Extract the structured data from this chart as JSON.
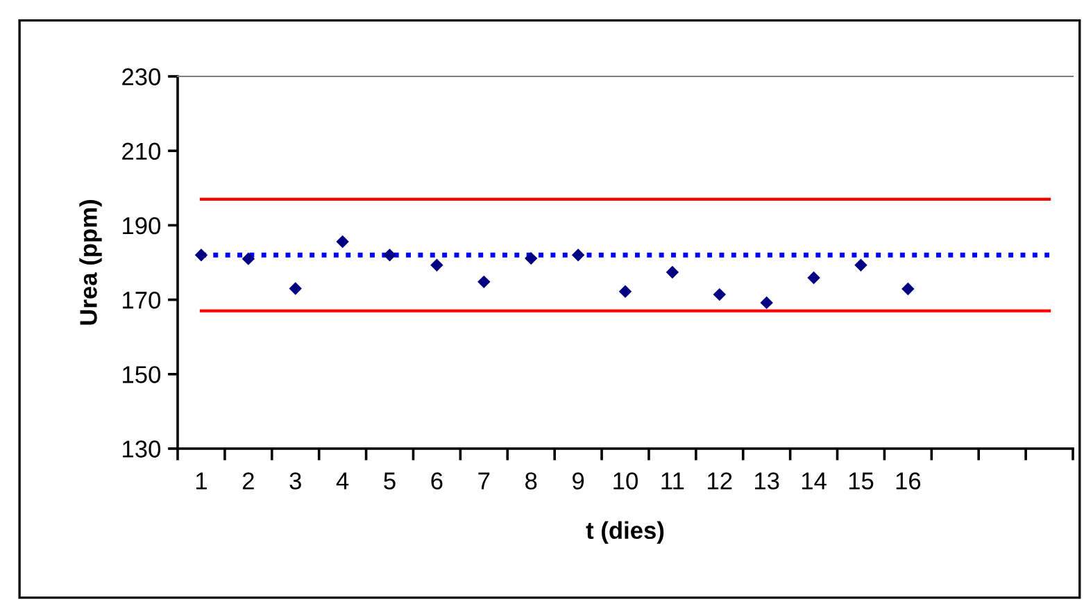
{
  "chart_data": {
    "type": "scatter",
    "xlabel": "t (dies)",
    "ylabel": "Urea (ppm)",
    "categories": [
      "1",
      "2",
      "3",
      "4",
      "5",
      "6",
      "7",
      "8",
      "9",
      "10",
      "11",
      "12",
      "13",
      "14",
      "15",
      "16",
      null,
      null,
      null
    ],
    "series": [
      {
        "color": "#000080",
        "values": [
          182,
          181,
          173,
          185.6,
          182,
          179.3,
          174.8,
          181.1,
          182,
          172.2,
          177.4,
          171.4,
          169.2,
          175.9,
          179.3,
          172.9,
          null,
          null,
          null
        ]
      }
    ],
    "marker": "diamond",
    "ylim": [
      130,
      230
    ],
    "yticks": [
      130,
      150,
      170,
      190,
      210,
      230
    ],
    "ref_lines": [
      {
        "axis": "y",
        "value": 197,
        "color": "#ff0000",
        "line_style": "solid"
      },
      {
        "axis": "y",
        "value": 167,
        "color": "#ff0000",
        "line_style": "solid"
      },
      {
        "axis": "y",
        "value": 182,
        "color": "#0000ff",
        "line_style": "dotted"
      }
    ],
    "grid": false,
    "legend": false
  }
}
